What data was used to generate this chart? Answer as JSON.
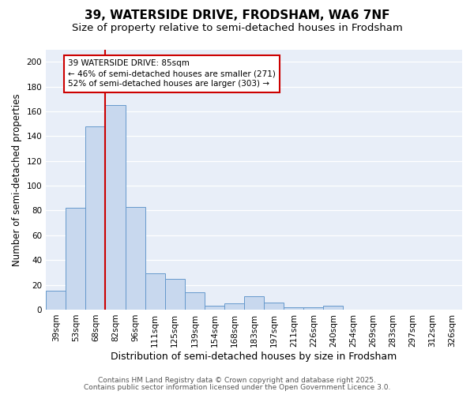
{
  "title": "39, WATERSIDE DRIVE, FRODSHAM, WA6 7NF",
  "subtitle": "Size of property relative to semi-detached houses in Frodsham",
  "xlabel": "Distribution of semi-detached houses by size in Frodsham",
  "ylabel": "Number of semi-detached properties",
  "categories": [
    "39sqm",
    "53sqm",
    "68sqm",
    "82sqm",
    "96sqm",
    "111sqm",
    "125sqm",
    "139sqm",
    "154sqm",
    "168sqm",
    "183sqm",
    "197sqm",
    "211sqm",
    "226sqm",
    "240sqm",
    "254sqm",
    "269sqm",
    "283sqm",
    "297sqm",
    "312sqm",
    "326sqm"
  ],
  "values": [
    15,
    82,
    148,
    165,
    83,
    29,
    25,
    14,
    3,
    5,
    11,
    6,
    2,
    2,
    3,
    0,
    0,
    0,
    0,
    0,
    0
  ],
  "bar_color": "#c8d8ee",
  "bar_edge_color": "#6699cc",
  "red_line_x": 3.0,
  "annotation_line1": "39 WATERSIDE DRIVE: 85sqm",
  "annotation_line2": "← 46% of semi-detached houses are smaller (271)",
  "annotation_line3": "52% of semi-detached houses are larger (303) →",
  "annotation_box_color": "#ffffff",
  "annotation_box_edge_color": "#cc0000",
  "ylim": [
    0,
    210
  ],
  "yticks": [
    0,
    20,
    40,
    60,
    80,
    100,
    120,
    140,
    160,
    180,
    200
  ],
  "footer1": "Contains HM Land Registry data © Crown copyright and database right 2025.",
  "footer2": "Contains public sector information licensed under the Open Government Licence 3.0.",
  "fig_background_color": "#ffffff",
  "plot_background_color": "#e8eef8",
  "grid_color": "#ffffff",
  "title_fontsize": 11,
  "subtitle_fontsize": 9.5,
  "tick_fontsize": 7.5,
  "ylabel_fontsize": 8.5,
  "xlabel_fontsize": 9,
  "footer_fontsize": 6.5,
  "ann_fontsize": 7.5
}
